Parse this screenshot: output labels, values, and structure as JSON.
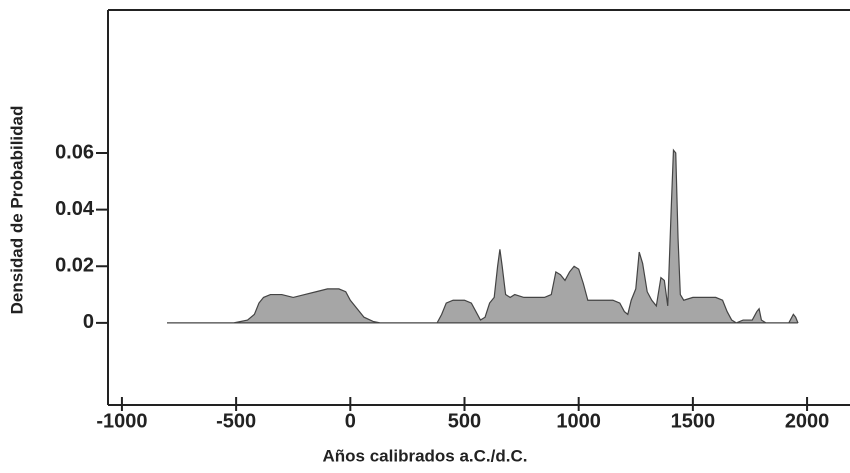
{
  "chart_data": {
    "type": "area",
    "xlabel": "Años calibrados a.C./d.C.",
    "ylabel": "Densidad de Probabilidad",
    "color": "#a6a6a6",
    "x": [
      -800,
      -510,
      -450,
      -420,
      -400,
      -380,
      -350,
      -300,
      -250,
      -200,
      -150,
      -100,
      -50,
      -20,
      0,
      30,
      60,
      100,
      130,
      380,
      400,
      420,
      450,
      500,
      530,
      550,
      570,
      590,
      610,
      630,
      645,
      655,
      665,
      680,
      700,
      720,
      760,
      800,
      850,
      880,
      900,
      920,
      940,
      960,
      980,
      1000,
      1020,
      1040,
      1100,
      1150,
      1180,
      1200,
      1215,
      1230,
      1250,
      1265,
      1280,
      1300,
      1320,
      1340,
      1360,
      1375,
      1390,
      1405,
      1415,
      1425,
      1435,
      1445,
      1460,
      1500,
      1550,
      1600,
      1630,
      1650,
      1670,
      1690,
      1720,
      1760,
      1780,
      1790,
      1800,
      1820,
      1920,
      1940,
      1950,
      1960
    ],
    "values": [
      0,
      0,
      0.001,
      0.003,
      0.007,
      0.009,
      0.01,
      0.01,
      0.009,
      0.01,
      0.011,
      0.012,
      0.012,
      0.011,
      0.008,
      0.005,
      0.002,
      0.0005,
      0,
      0,
      0.003,
      0.007,
      0.008,
      0.008,
      0.007,
      0.004,
      0.001,
      0.002,
      0.007,
      0.009,
      0.02,
      0.026,
      0.02,
      0.01,
      0.009,
      0.01,
      0.009,
      0.009,
      0.009,
      0.01,
      0.018,
      0.017,
      0.015,
      0.018,
      0.02,
      0.019,
      0.014,
      0.008,
      0.008,
      0.008,
      0.007,
      0.004,
      0.003,
      0.008,
      0.012,
      0.025,
      0.021,
      0.011,
      0.008,
      0.006,
      0.016,
      0.015,
      0.006,
      0.04,
      0.061,
      0.06,
      0.03,
      0.01,
      0.008,
      0.009,
      0.009,
      0.009,
      0.008,
      0.004,
      0.001,
      0,
      0.001,
      0.001,
      0.004,
      0.005,
      0.001,
      0,
      0,
      0.003,
      0.002,
      0
    ],
    "xlim": [
      -1061,
      2188
    ],
    "xticks": [
      -1000,
      -500,
      0,
      500,
      1000,
      1500,
      2000
    ],
    "ylim": [
      -0.029,
      0.1105
    ],
    "yticks": [
      0,
      0.02,
      0.04,
      0.06
    ]
  }
}
